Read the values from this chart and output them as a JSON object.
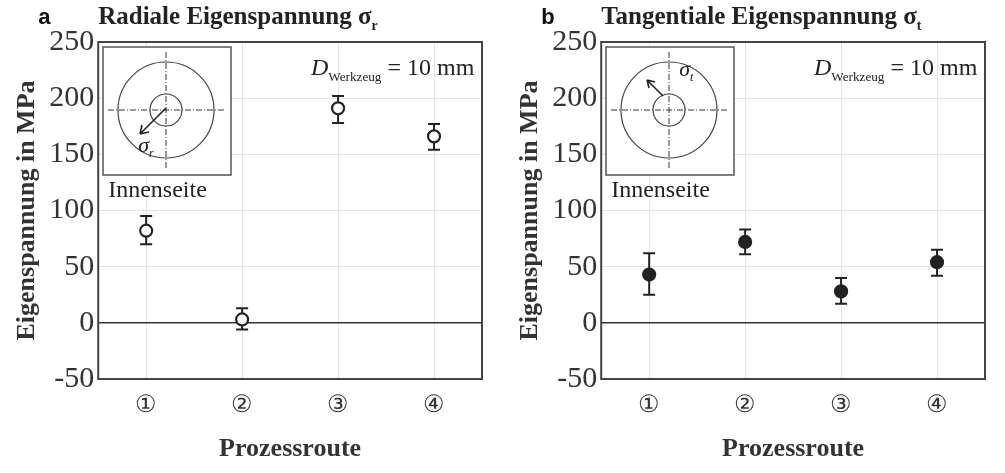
{
  "chart_data": [
    {
      "type": "scatter",
      "title": "Radiale Eigenspannung σ$_{r}$",
      "xlabel": "Prozessroute",
      "ylabel": "Eigenspannung in MPa",
      "categories": [
        "①",
        "②",
        "③",
        "④"
      ],
      "series": [
        {
          "color": "#222222",
          "values": [
            82,
            3,
            191,
            166
          ],
          "errors": [
            [
              70,
              95
            ],
            [
              -6,
              13
            ],
            [
              178,
              202
            ],
            [
              154,
              177
            ]
          ]
        }
      ],
      "ylim": [
        -50,
        250
      ],
      "yticks": [
        -50,
        0,
        50,
        100,
        150,
        200,
        250
      ],
      "grid": true,
      "marker": "circle",
      "ref_lines": [
        {
          "axis": "y",
          "value": 0,
          "color": "#333333"
        }
      ],
      "annotations": [
        "a",
        "D$_{Werkzeug}$ = 10 mm",
        "σ$_{r}$",
        "Innenseite"
      ]
    },
    {
      "type": "scatter",
      "title": "Tangentiale Eigenspannung σ$_{t}$",
      "xlabel": "Prozessroute",
      "ylabel": "Eigenspannung in MPa",
      "categories": [
        "①",
        "②",
        "③",
        "④"
      ],
      "series": [
        {
          "color": "#222222",
          "values": [
            43,
            72,
            28,
            54
          ],
          "errors": [
            [
              25,
              62
            ],
            [
              61,
              83
            ],
            [
              17,
              40
            ],
            [
              42,
              65
            ]
          ]
        }
      ],
      "ylim": [
        -50,
        250
      ],
      "yticks": [
        -50,
        0,
        50,
        100,
        150,
        200,
        250
      ],
      "grid": true,
      "marker": "circle",
      "ref_lines": [
        {
          "axis": "y",
          "value": 0,
          "color": "#333333"
        }
      ],
      "annotations": [
        "b",
        "D$_{Werkzeug}$ = 10 mm",
        "σ$_{t}$",
        "Innenseite"
      ]
    }
  ]
}
